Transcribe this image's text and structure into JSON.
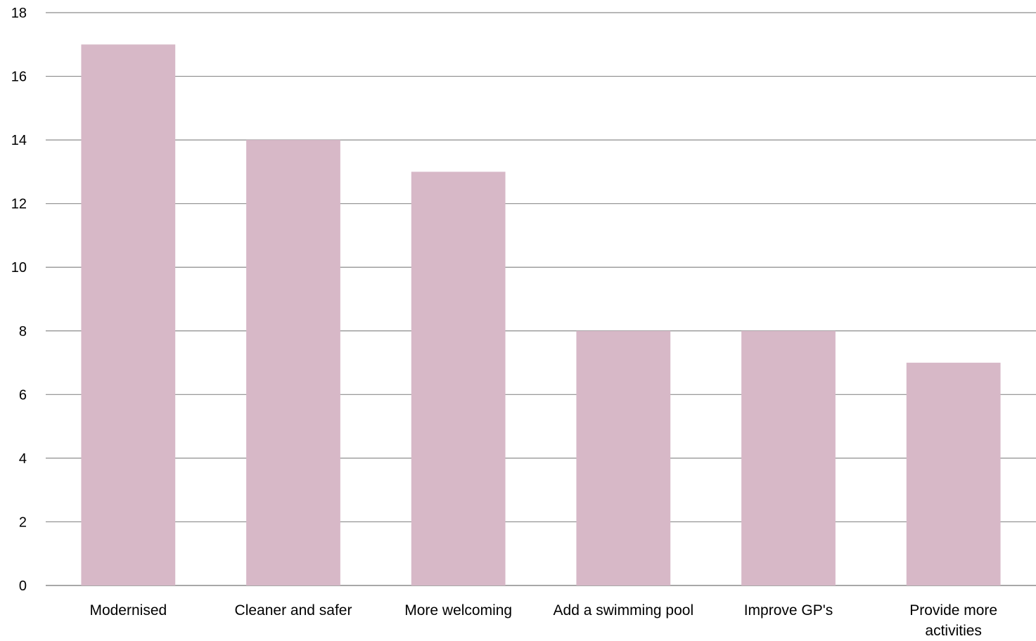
{
  "chart_data": {
    "type": "bar",
    "title": "",
    "xlabel": "",
    "ylabel": "",
    "categories": [
      [
        "Modernised"
      ],
      [
        "Cleaner and safer"
      ],
      [
        "More welcoming"
      ],
      [
        "Add a swimming pool"
      ],
      [
        "Improve GP's"
      ],
      [
        "Provide more",
        "activities"
      ]
    ],
    "values": [
      17,
      14,
      13,
      8,
      8,
      7
    ],
    "ylim": [
      0,
      18
    ],
    "yticks": [
      "0",
      "2",
      "4",
      "6",
      "8",
      "10",
      "12",
      "14",
      "16",
      "18"
    ],
    "grid": true,
    "legend": "none",
    "colors": {
      "bar": "#d7b8c7",
      "gridline": "#8c8c8c",
      "axis": "#8c8c8c"
    }
  }
}
